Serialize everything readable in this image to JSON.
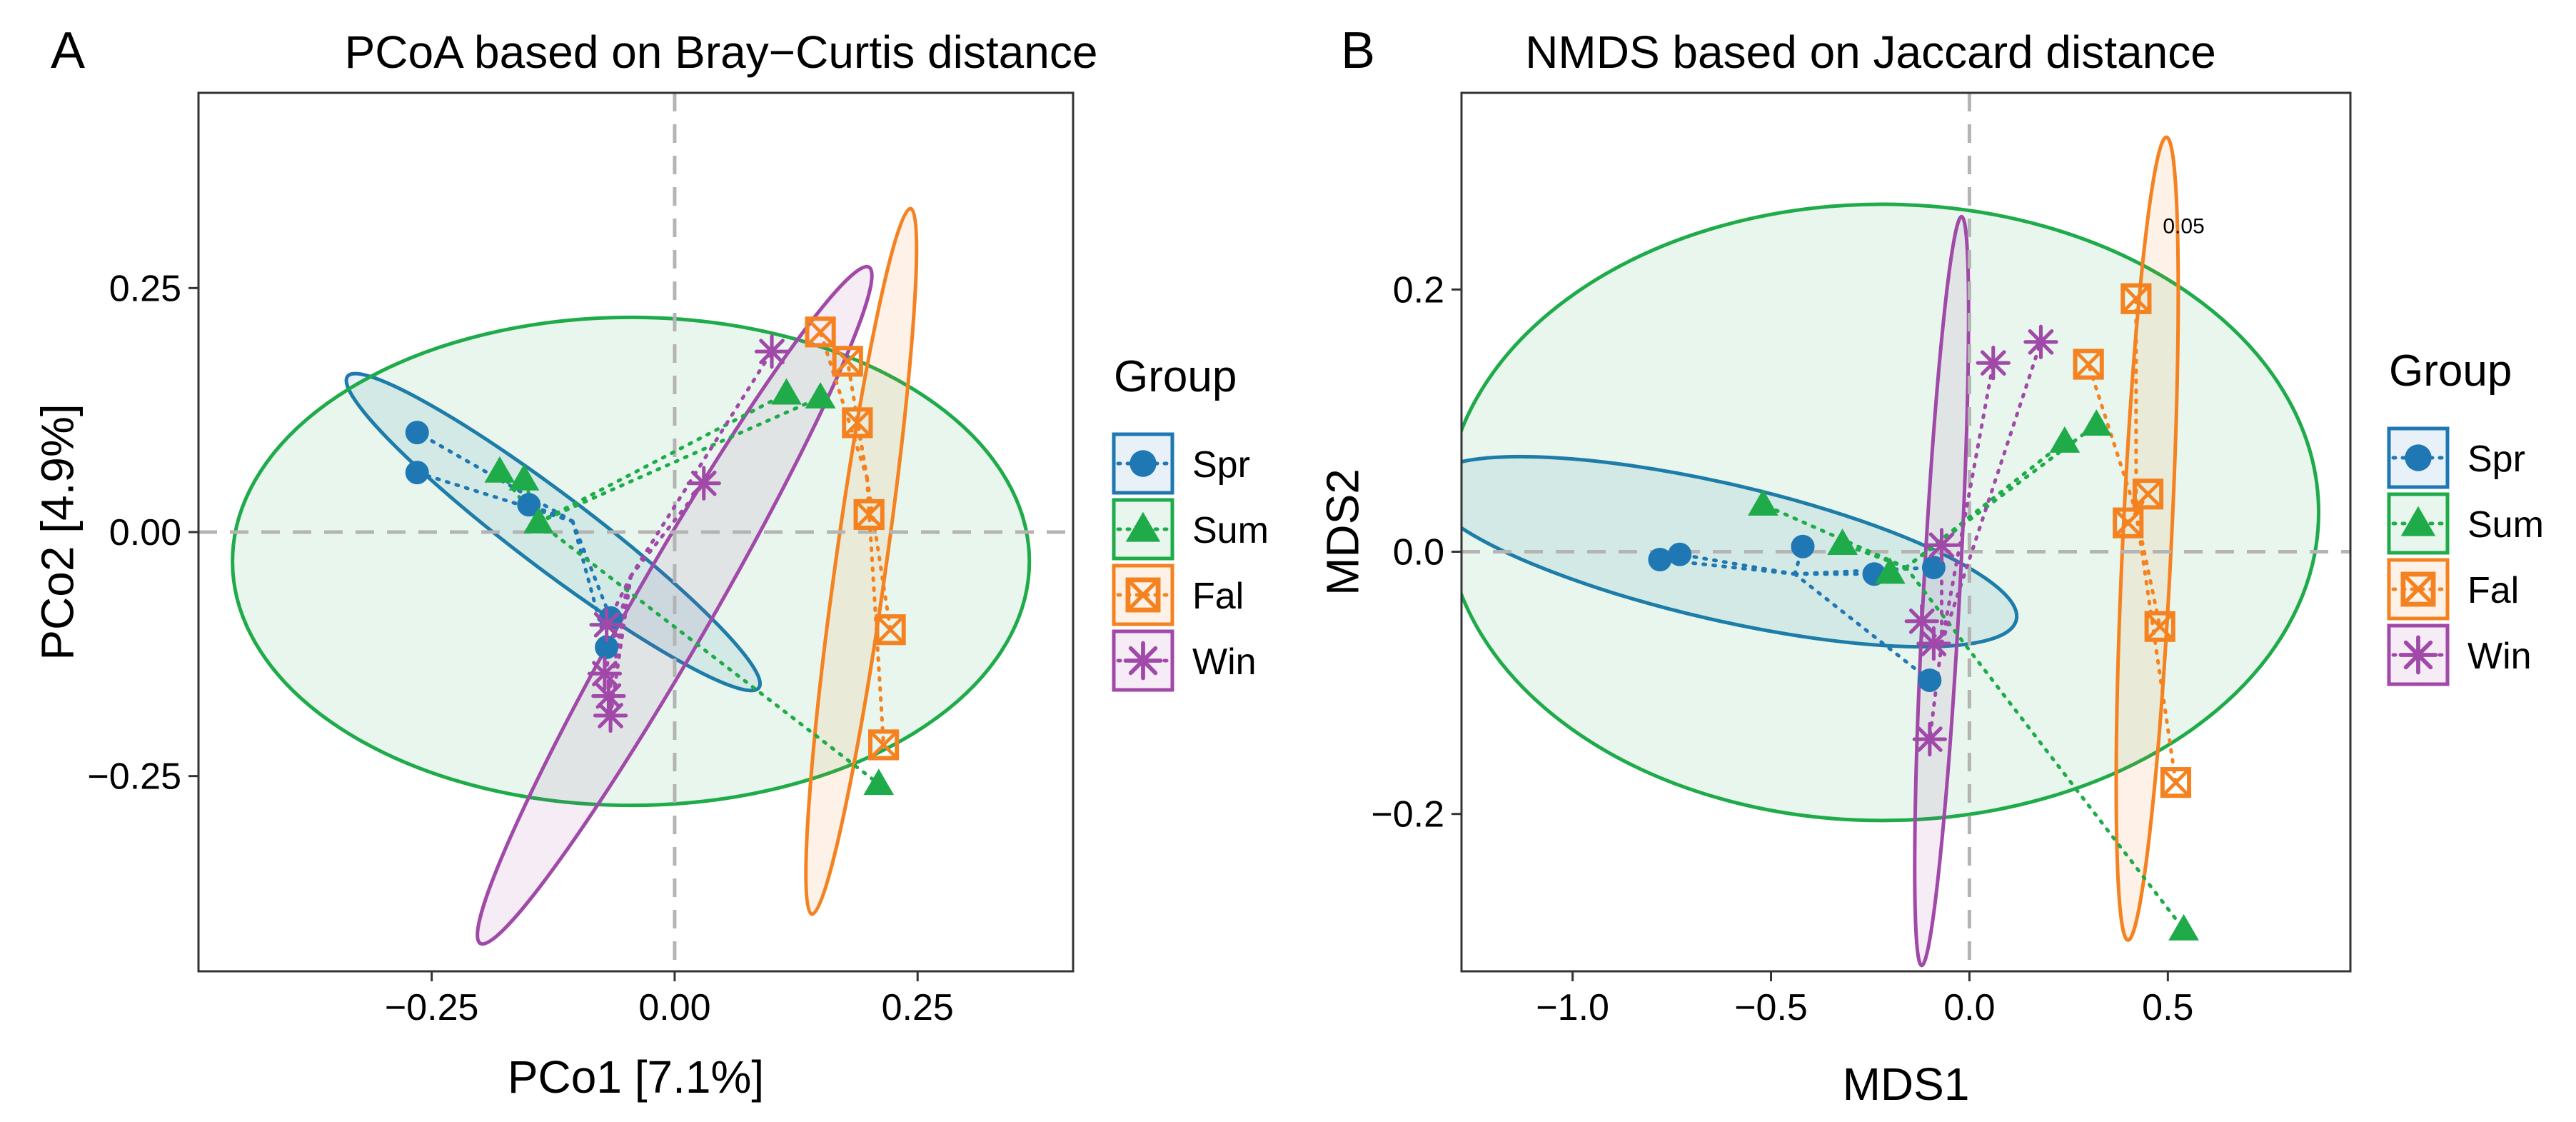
{
  "chart_data": [
    {
      "type": "scatter",
      "panel": "A",
      "title": "PCoA based on Bray−Curtis distance",
      "xlabel": "PCo1 [7.1%]",
      "ylabel": "PCo2 [4.9%]",
      "xlim": [
        -0.49,
        0.41
      ],
      "ylim": [
        -0.45,
        0.45
      ],
      "xticks": [
        -0.25,
        0.0,
        0.25
      ],
      "yticks": [
        -0.25,
        0.0,
        0.25
      ],
      "xtick_labels": [
        "−0.25",
        "0.00",
        "0.25"
      ],
      "ytick_labels": [
        "−0.25",
        "0.00",
        "0.25"
      ],
      "grid": false,
      "reference_lines": {
        "x": 0,
        "y": 0
      },
      "annotations": [],
      "legend": {
        "title": "Group",
        "position": "right"
      },
      "series": [
        {
          "name": "Spr",
          "color": "#1f78b4",
          "marker": "circle",
          "centroid": [
            -0.105,
            0.011
          ],
          "points": [
            [
              -0.265,
              0.102
            ],
            [
              -0.265,
              0.061
            ],
            [
              -0.15,
              0.028
            ],
            [
              -0.066,
              -0.088
            ],
            [
              -0.07,
              -0.118
            ]
          ],
          "ellipse": {
            "center": [
              -0.125,
              0.0
            ],
            "semi_major": 0.265,
            "semi_minor": 0.038,
            "angle_deg": -37
          }
        },
        {
          "name": "Sum",
          "color": "#1fab4a",
          "marker": "triangle",
          "centroid": [
            -0.14,
            0.01
          ],
          "points": [
            [
              -0.18,
              0.062
            ],
            [
              -0.155,
              0.054
            ],
            [
              -0.14,
              0.01
            ],
            [
              0.115,
              0.142
            ],
            [
              0.15,
              0.138
            ],
            [
              0.21,
              -0.258
            ]
          ],
          "ellipse": {
            "center": [
              -0.045,
              -0.03
            ],
            "semi_major": 0.41,
            "semi_minor": 0.25,
            "angle_deg": 0
          }
        },
        {
          "name": "Fal",
          "color": "#f58220",
          "marker": "square-x",
          "centroid": [
            0.198,
            0.055
          ],
          "points": [
            [
              0.15,
              0.205
            ],
            [
              0.178,
              0.175
            ],
            [
              0.188,
              0.112
            ],
            [
              0.2,
              0.018
            ],
            [
              0.222,
              -0.1
            ],
            [
              0.215,
              -0.218
            ]
          ],
          "ellipse": {
            "center": [
              0.192,
              -0.03
            ],
            "semi_major": 0.365,
            "semi_minor": 0.026,
            "angle_deg": 82
          }
        },
        {
          "name": "Win",
          "color": "#a149a9",
          "marker": "asterisk",
          "centroid": [
            -0.045,
            -0.045
          ],
          "points": [
            [
              0.1,
              0.185
            ],
            [
              0.03,
              0.05
            ],
            [
              -0.07,
              -0.095
            ],
            [
              -0.072,
              -0.145
            ],
            [
              -0.068,
              -0.168
            ],
            [
              -0.066,
              -0.188
            ]
          ],
          "ellipse": {
            "center": [
              0.0,
              -0.075
            ],
            "semi_major": 0.4,
            "semi_minor": 0.04,
            "angle_deg": 60
          }
        }
      ]
    },
    {
      "type": "scatter",
      "panel": "B",
      "title": "NMDS based on Jaccard distance",
      "xlabel": "MDS1",
      "ylabel": "MDS2",
      "xlim": [
        -1.28,
        0.96
      ],
      "ylim": [
        -0.32,
        0.35
      ],
      "xticks": [
        -1.0,
        -0.5,
        0.0,
        0.5
      ],
      "yticks": [
        -0.2,
        0.0,
        0.2
      ],
      "xtick_labels": [
        "−1.0",
        "−0.5",
        "0.0",
        "0.5"
      ],
      "ytick_labels": [
        "−0.2",
        "0.0",
        "0.2"
      ],
      "grid": false,
      "reference_lines": {
        "x": 0,
        "y": 0
      },
      "annotations": [
        {
          "text": "0.05",
          "x": 0.54,
          "y": 0.243
        }
      ],
      "legend": {
        "title": "Group",
        "position": "right"
      },
      "series": [
        {
          "name": "Spr",
          "color": "#1f78b4",
          "marker": "circle",
          "centroid": [
            -0.44,
            -0.017
          ],
          "points": [
            [
              -0.78,
              -0.006
            ],
            [
              -0.73,
              -0.002
            ],
            [
              -0.42,
              0.004
            ],
            [
              -0.24,
              -0.017
            ],
            [
              -0.09,
              -0.012
            ],
            [
              -0.1,
              -0.098
            ]
          ],
          "ellipse": {
            "center": [
              -0.625,
              0.0
            ],
            "semi_major": 0.745,
            "semi_minor": 0.052,
            "angle_deg": -4
          }
        },
        {
          "name": "Sum",
          "color": "#1fab4a",
          "marker": "triangle",
          "centroid": [
            -0.16,
            -0.012
          ],
          "points": [
            [
              -0.52,
              0.036
            ],
            [
              -0.32,
              0.006
            ],
            [
              -0.2,
              -0.016
            ],
            [
              0.24,
              0.084
            ],
            [
              0.32,
              0.097
            ],
            [
              0.54,
              -0.288
            ]
          ],
          "ellipse": {
            "center": [
              -0.22,
              0.03
            ],
            "semi_major": 1.1,
            "semi_minor": 0.235,
            "angle_deg": 0
          }
        },
        {
          "name": "Fal",
          "color": "#f58220",
          "marker": "square-x",
          "centroid": [
            0.42,
            0.03
          ],
          "points": [
            [
              0.3,
              0.143
            ],
            [
              0.42,
              0.193
            ],
            [
              0.45,
              0.044
            ],
            [
              0.4,
              0.022
            ],
            [
              0.48,
              -0.057
            ],
            [
              0.52,
              -0.176
            ]
          ],
          "ellipse": {
            "center": [
              0.448,
              0.01
            ],
            "semi_major": 0.31,
            "semi_minor": 0.055,
            "angle_deg": 81
          }
        },
        {
          "name": "Win",
          "color": "#a149a9",
          "marker": "asterisk",
          "centroid": [
            -0.07,
            -0.07
          ],
          "points": [
            [
              0.06,
              0.144
            ],
            [
              0.18,
              0.16
            ],
            [
              -0.07,
              0.005
            ],
            [
              -0.12,
              -0.053
            ],
            [
              -0.09,
              -0.07
            ],
            [
              -0.1,
              -0.143
            ]
          ],
          "ellipse": {
            "center": [
              -0.07,
              -0.03
            ],
            "semi_major": 0.29,
            "semi_minor": 0.04,
            "angle_deg": 80
          }
        }
      ]
    }
  ]
}
